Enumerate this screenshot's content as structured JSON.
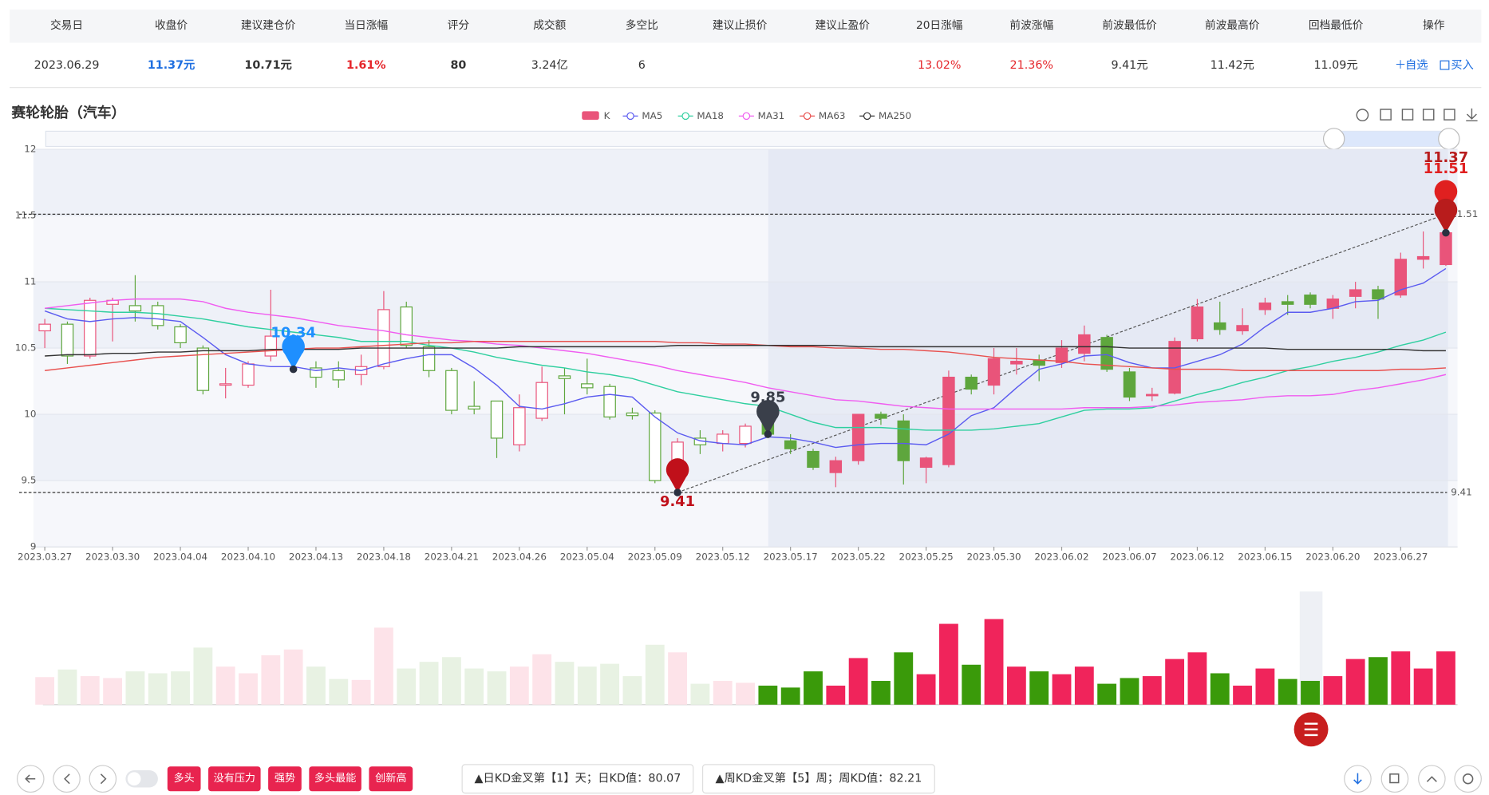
{
  "table": {
    "headers": [
      "交易日",
      "收盘价",
      "建议建仓价",
      "当日涨幅",
      "评分",
      "成交额",
      "多空比",
      "建议止损价",
      "建议止盈价",
      "20日涨幅",
      "前波涨幅",
      "前波最低价",
      "前波最高价",
      "回档最低价",
      "操作"
    ],
    "row": [
      "2023.06.29",
      "11.37元",
      "10.71元",
      "1.61%",
      "80",
      "3.24亿",
      "6",
      null,
      null,
      "13.02%",
      "21.36%",
      "9.41元",
      "11.42元",
      "11.09元"
    ],
    "actions": [
      "自选",
      "买入"
    ]
  },
  "chart_data": {
    "type": "candlestick",
    "title": "赛轮轮胎（汽车）",
    "k_name": "K",
    "up_color": "#e9547a",
    "down_color": "#5ea63d",
    "ylim": [
      9,
      12
    ],
    "yticks": [
      9,
      9.5,
      10,
      10.5,
      11,
      11.5,
      12
    ],
    "categories": [
      "2023.03.27",
      null,
      null,
      "2023.03.30",
      null,
      null,
      "2023.04.04",
      null,
      null,
      "2023.04.10",
      null,
      null,
      "2023.04.13",
      null,
      null,
      "2023.04.18",
      null,
      null,
      "2023.04.21",
      null,
      null,
      "2023.04.26",
      null,
      null,
      "2023.05.04",
      null,
      null,
      "2023.05.09",
      null,
      null,
      "2023.05.12",
      null,
      null,
      "2023.05.17",
      null,
      null,
      "2023.05.22",
      null,
      null,
      "2023.05.25",
      null,
      null,
      "2023.05.30",
      null,
      null,
      "2023.06.02",
      null,
      null,
      "2023.06.07",
      null,
      null,
      "2023.06.12",
      null,
      null,
      "2023.06.15",
      null,
      null,
      "2023.06.20",
      null,
      null,
      "2023.06.27",
      null,
      null
    ],
    "open": [
      10.63,
      10.68,
      10.44,
      10.83,
      10.82,
      10.82,
      10.66,
      10.5,
      10.22,
      10.22,
      10.44,
      10.47,
      10.35,
      10.33,
      10.3,
      10.36,
      10.81,
      10.51,
      10.33,
      10.06,
      10.1,
      9.77,
      9.97,
      10.29,
      10.23,
      10.21,
      10.01,
      10.01,
      9.55,
      9.82,
      9.78,
      9.78,
      9.93,
      9.8,
      9.72,
      9.56,
      9.65,
      10.0,
      9.95,
      9.6,
      9.62,
      10.28,
      10.22,
      10.38,
      10.41,
      10.39,
      10.46,
      10.58,
      10.32,
      10.14,
      10.16,
      10.57,
      10.69,
      10.63,
      10.79,
      10.85,
      10.9,
      10.8,
      10.89,
      10.94,
      10.9,
      11.17,
      11.13
    ],
    "close": [
      10.68,
      10.44,
      10.86,
      10.86,
      10.78,
      10.67,
      10.54,
      10.18,
      10.23,
      10.38,
      10.59,
      10.52,
      10.28,
      10.26,
      10.36,
      10.79,
      10.52,
      10.33,
      10.03,
      10.04,
      9.82,
      10.05,
      10.24,
      10.27,
      10.2,
      9.98,
      9.99,
      9.5,
      9.79,
      9.77,
      9.85,
      9.91,
      9.85,
      9.74,
      9.6,
      9.65,
      10.0,
      9.97,
      9.65,
      9.67,
      10.28,
      10.19,
      10.42,
      10.4,
      10.37,
      10.5,
      10.6,
      10.34,
      10.13,
      10.15,
      10.55,
      10.81,
      10.64,
      10.67,
      10.84,
      10.83,
      10.83,
      10.87,
      10.94,
      10.87,
      11.17,
      11.19,
      11.37
    ],
    "high": [
      10.72,
      10.7,
      10.88,
      10.88,
      11.05,
      10.85,
      10.68,
      10.52,
      10.35,
      10.4,
      10.94,
      10.6,
      10.4,
      10.4,
      10.45,
      10.93,
      10.85,
      10.56,
      10.35,
      10.25,
      10.1,
      10.15,
      10.36,
      10.35,
      10.42,
      10.23,
      10.05,
      10.03,
      9.82,
      9.88,
      9.88,
      9.93,
      9.98,
      9.85,
      9.74,
      9.68,
      10.0,
      10.02,
      10.0,
      9.68,
      10.33,
      10.3,
      10.5,
      10.5,
      10.45,
      10.56,
      10.67,
      10.6,
      10.35,
      10.2,
      10.58,
      10.87,
      10.85,
      10.8,
      10.88,
      10.9,
      10.92,
      10.9,
      11.0,
      10.97,
      11.22,
      11.38,
      11.51
    ],
    "low": [
      10.5,
      10.38,
      10.42,
      10.55,
      10.7,
      10.64,
      10.5,
      10.15,
      10.12,
      10.2,
      10.4,
      10.4,
      10.2,
      10.2,
      10.22,
      10.34,
      10.5,
      10.28,
      10.0,
      10.0,
      9.67,
      9.72,
      9.95,
      10.0,
      10.15,
      9.96,
      9.96,
      9.48,
      9.41,
      9.7,
      9.72,
      9.75,
      9.82,
      9.7,
      9.58,
      9.45,
      9.62,
      9.92,
      9.47,
      9.48,
      9.6,
      10.15,
      10.15,
      10.3,
      10.25,
      10.35,
      10.4,
      10.32,
      10.1,
      10.1,
      10.15,
      10.55,
      10.6,
      10.6,
      10.75,
      10.75,
      10.8,
      10.72,
      10.8,
      10.72,
      10.88,
      11.1,
      11.12
    ],
    "series": [
      {
        "name": "MA5",
        "color": "#5b5bf0",
        "values": [
          10.78,
          10.72,
          10.7,
          10.72,
          10.73,
          10.72,
          10.7,
          10.58,
          10.45,
          10.38,
          10.36,
          10.36,
          10.33,
          10.35,
          10.33,
          10.38,
          10.42,
          10.45,
          10.45,
          10.35,
          10.22,
          10.06,
          10.04,
          10.08,
          10.13,
          10.15,
          10.13,
          9.98,
          9.86,
          9.8,
          9.78,
          9.77,
          9.83,
          9.82,
          9.79,
          9.75,
          9.77,
          9.78,
          9.78,
          9.77,
          9.85,
          9.99,
          10.05,
          10.2,
          10.34,
          10.38,
          10.44,
          10.45,
          10.39,
          10.35,
          10.35,
          10.4,
          10.45,
          10.53,
          10.66,
          10.77,
          10.77,
          10.8,
          10.85,
          10.86,
          10.94,
          10.99,
          11.1
        ]
      },
      {
        "name": "MA18",
        "color": "#2fcf9f",
        "values": [
          10.8,
          10.79,
          10.78,
          10.77,
          10.77,
          10.76,
          10.74,
          10.72,
          10.69,
          10.66,
          10.64,
          10.62,
          10.6,
          10.58,
          10.55,
          10.55,
          10.55,
          10.52,
          10.5,
          10.47,
          10.43,
          10.4,
          10.37,
          10.35,
          10.32,
          10.3,
          10.27,
          10.22,
          10.17,
          10.14,
          10.11,
          10.08,
          10.06,
          10.0,
          9.94,
          9.9,
          9.9,
          9.9,
          9.89,
          9.88,
          9.88,
          9.88,
          9.89,
          9.91,
          9.93,
          9.98,
          10.03,
          10.04,
          10.04,
          10.05,
          10.1,
          10.15,
          10.19,
          10.24,
          10.28,
          10.33,
          10.36,
          10.4,
          10.43,
          10.47,
          10.52,
          10.56,
          10.62
        ]
      },
      {
        "name": "MA31",
        "color": "#f05cf0",
        "values": [
          10.8,
          10.82,
          10.84,
          10.86,
          10.87,
          10.87,
          10.87,
          10.85,
          10.8,
          10.77,
          10.75,
          10.73,
          10.7,
          10.67,
          10.65,
          10.63,
          10.6,
          10.58,
          10.56,
          10.55,
          10.53,
          10.52,
          10.5,
          10.48,
          10.46,
          10.43,
          10.4,
          10.37,
          10.33,
          10.3,
          10.27,
          10.24,
          10.2,
          10.17,
          10.14,
          10.11,
          10.1,
          10.08,
          10.06,
          10.05,
          10.04,
          10.04,
          10.04,
          10.04,
          10.04,
          10.04,
          10.05,
          10.05,
          10.05,
          10.06,
          10.07,
          10.09,
          10.1,
          10.11,
          10.13,
          10.14,
          10.14,
          10.15,
          10.18,
          10.2,
          10.23,
          10.26,
          10.3
        ]
      },
      {
        "name": "MA63",
        "color": "#e8514f",
        "values": [
          10.33,
          10.35,
          10.37,
          10.39,
          10.41,
          10.43,
          10.44,
          10.45,
          10.46,
          10.47,
          10.48,
          10.49,
          10.5,
          10.5,
          10.51,
          10.52,
          10.53,
          10.54,
          10.54,
          10.55,
          10.55,
          10.55,
          10.55,
          10.55,
          10.55,
          10.55,
          10.55,
          10.55,
          10.54,
          10.54,
          10.53,
          10.53,
          10.52,
          10.51,
          10.51,
          10.5,
          10.5,
          10.49,
          10.49,
          10.48,
          10.47,
          10.45,
          10.43,
          10.42,
          10.41,
          10.4,
          10.38,
          10.37,
          10.36,
          10.35,
          10.34,
          10.34,
          10.34,
          10.33,
          10.33,
          10.33,
          10.33,
          10.33,
          10.33,
          10.33,
          10.34,
          10.34,
          10.35
        ]
      },
      {
        "name": "MA250",
        "color": "#333333",
        "values": [
          10.44,
          10.45,
          10.45,
          10.46,
          10.46,
          10.47,
          10.47,
          10.48,
          10.48,
          10.48,
          10.49,
          10.49,
          10.49,
          10.49,
          10.5,
          10.5,
          10.5,
          10.5,
          10.5,
          10.5,
          10.5,
          10.51,
          10.51,
          10.51,
          10.51,
          10.51,
          10.51,
          10.51,
          10.52,
          10.52,
          10.52,
          10.52,
          10.52,
          10.52,
          10.52,
          10.52,
          10.51,
          10.51,
          10.51,
          10.51,
          10.51,
          10.51,
          10.51,
          10.51,
          10.51,
          10.51,
          10.51,
          10.51,
          10.5,
          10.5,
          10.5,
          10.5,
          10.5,
          10.5,
          10.5,
          10.49,
          10.49,
          10.49,
          10.49,
          10.49,
          10.49,
          10.48,
          10.48
        ]
      }
    ],
    "volume": [
      29,
      37,
      30,
      28,
      35,
      33,
      35,
      60,
      40,
      33,
      52,
      58,
      40,
      27,
      26,
      81,
      38,
      45,
      50,
      38,
      35,
      40,
      53,
      45,
      40,
      43,
      30,
      63,
      55,
      22,
      25,
      23,
      20,
      18,
      35,
      20,
      49,
      25,
      55,
      32,
      85,
      42,
      90,
      40,
      35,
      32,
      40,
      22,
      28,
      30,
      48,
      55,
      33,
      20,
      38,
      27,
      25,
      30,
      48,
      50,
      56,
      38,
      56
    ],
    "levels": [
      11.51,
      9.41
    ],
    "annotations": [
      {
        "value": 10.34,
        "color": "#1e8fff"
      },
      {
        "value": 9.85,
        "color": "#3a3f4a"
      },
      {
        "value": 9.41,
        "color": "#c0101a"
      },
      {
        "value": 11.51,
        "color": "#e02020"
      },
      {
        "value": 11.37,
        "color": "#b81c1c"
      }
    ]
  },
  "toolbar": {
    "tags": [
      "多头",
      "没有压力",
      "强势",
      "多头最能",
      "创新高"
    ],
    "notes": [
      "▲日KD金叉第【1】天；日KD值：80.07",
      "▲周KD金叉第【5】周；周KD值：82.21"
    ]
  }
}
